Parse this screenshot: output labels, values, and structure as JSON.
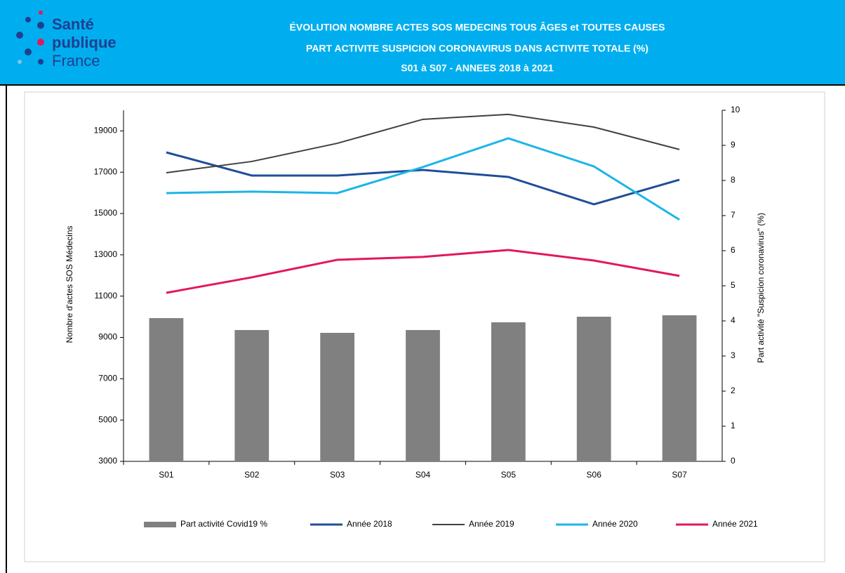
{
  "header": {
    "logo": [
      "Santé",
      "publique",
      "France"
    ],
    "title": [
      "ÉVOLUTION  NOMBRE ACTES SOS MEDECINS TOUS ÂGES et TOUTES CAUSES",
      "PART ACTIVITE SUSPICION CORONAVIRUS DANS ACTIVITE TOTALE (%)",
      "S01 à S07 - ANNEES 2018 à 2021"
    ]
  },
  "chart_data": {
    "type": "combo",
    "ylabel": "Nombre d'actes SOS Médecins",
    "y2label": "Part activité \"Suspicion coronavirus\" (%)",
    "categories": [
      "S01",
      "S02",
      "S03",
      "S04",
      "S05",
      "S06",
      "S07"
    ],
    "ylim": [
      3000,
      20000
    ],
    "yticks": [
      3000,
      5000,
      7000,
      9000,
      11000,
      13000,
      15000,
      17000,
      19000
    ],
    "y2lim": [
      0,
      10
    ],
    "y2ticks": [
      0,
      1,
      2,
      3,
      4,
      5,
      6,
      7,
      8,
      9,
      10
    ],
    "legend": "bottom",
    "series": [
      {
        "name": "Part activité Covid19 %",
        "type": "bar",
        "axis": "y2",
        "color": "#808080",
        "values": [
          4.08,
          3.74,
          3.66,
          3.74,
          3.96,
          4.12,
          4.16
        ]
      },
      {
        "name": "Année 2018",
        "type": "line",
        "color": "#1f4e99",
        "values": [
          17960,
          16840,
          16840,
          17110,
          16770,
          15445,
          16635
        ]
      },
      {
        "name": "Année 2019",
        "type": "line",
        "color": "#404040",
        "values": [
          16975,
          17520,
          18400,
          19560,
          19800,
          19185,
          18100
        ]
      },
      {
        "name": "Année 2020",
        "type": "line",
        "color": "#1cb5e8",
        "values": [
          15990,
          16060,
          15990,
          17250,
          18640,
          17280,
          14700
        ]
      },
      {
        "name": "Année 2021",
        "type": "line",
        "color": "#e2185b",
        "values": [
          11160,
          11910,
          12760,
          12900,
          13235,
          12725,
          11980
        ]
      }
    ]
  }
}
